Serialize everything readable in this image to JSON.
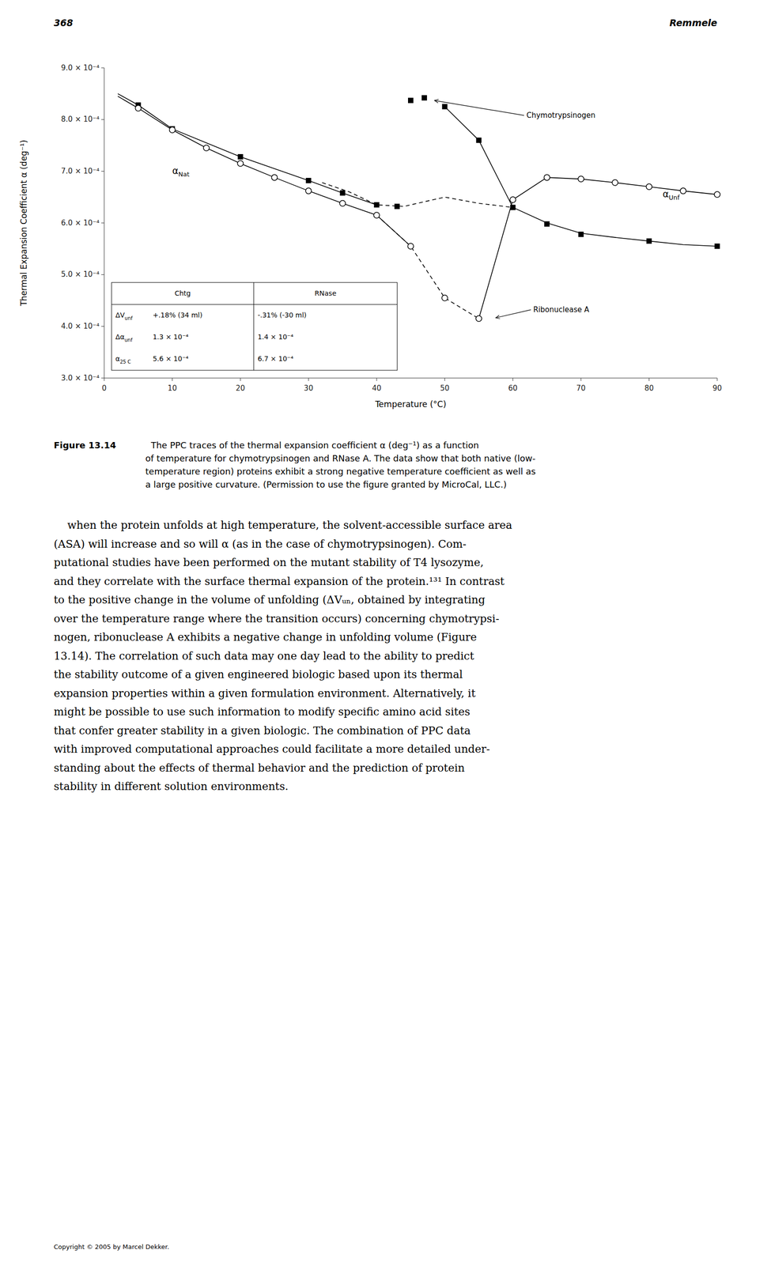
{
  "background": "#ffffff",
  "header": {
    "page_num": "368",
    "author": "Remmele"
  },
  "caption_label": "Figure 13.14",
  "caption": [
    "  The PPC traces of the thermal expansion coefficient α (deg⁻¹) as a function",
    "of temperature for chymotrypsinogen and RNase A. The data show that both native (low-",
    "temperature region) proteins exhibit a strong negative temperature coefficient as well as",
    "a large positive curvature. (Permission to use the figure granted by MicroCal, LLC.)"
  ],
  "body": [
    "    when the protein unfolds at high temperature, the solvent-accessible surface area",
    "(ASA) will increase and so will α (as in the case of chymotrypsinogen). Com-",
    "putational studies have been performed on the mutant stability of T4 lysozyme,",
    "and they correlate with the surface thermal expansion of the protein.¹³¹ In contrast",
    "to the positive change in the volume of unfolding (ΔVᵤₙ⁦, obtained by integrating",
    "over the temperature range where the transition occurs) concerning chymotrypsi-",
    "nogen, ribonuclease A exhibits a negative change in unfolding volume (Figure",
    "13.14). The correlation of such data may one day lead to the ability to predict",
    "the stability outcome of a given engineered biologic based upon its thermal",
    "expansion properties within a given formulation environment. Alternatively, it",
    "might be possible to use such information to modify specific amino acid sites",
    "that confer greater stability in a given biologic. The combination of PPC data",
    "with improved computational approaches could facilitate a more detailed under-",
    "standing about the effects of thermal behavior and the prediction of protein",
    "stability in different solution environments."
  ],
  "copyright": "Copyright © 2005 by Marcel Dekker.",
  "chart_data": {
    "type": "line",
    "xlabel": "Temperature (°C)",
    "ylabel": "Thermal Expansion Coefficient α (deg⁻¹)",
    "xlim": [
      0,
      90
    ],
    "ylim": [
      0.0003,
      0.0009
    ],
    "xticks": [
      0,
      10,
      20,
      30,
      40,
      50,
      60,
      70,
      80,
      90
    ],
    "yticks": [
      {
        "value": 0.0003,
        "label": "3.0 × 10⁻⁴"
      },
      {
        "value": 0.0004,
        "label": "4.0 × 10⁻⁴"
      },
      {
        "value": 0.0005,
        "label": "5.0 × 10⁻⁴"
      },
      {
        "value": 0.0006,
        "label": "6.0 × 10⁻⁴"
      },
      {
        "value": 0.0007,
        "label": "7.0 × 10⁻⁴"
      },
      {
        "value": 0.0008,
        "label": "8.0 × 10⁻⁴"
      },
      {
        "value": 0.0009,
        "label": "9.0 × 10⁻⁴"
      }
    ],
    "grid": false,
    "series": [
      {
        "type": "line",
        "line_style": "solid",
        "color": "#000000",
        "x": [
          2,
          5,
          10,
          15,
          20,
          25,
          30,
          35,
          40
        ],
        "values": [
          0.00085,
          0.000828,
          0.000782,
          0.000755,
          0.000728,
          0.000705,
          0.000682,
          0.000658,
          0.000635
        ]
      },
      {
        "type": "line",
        "line_style": "solid",
        "color": "#000000",
        "x": [
          50,
          55,
          60,
          65,
          70,
          75,
          80,
          85,
          90
        ],
        "values": [
          0.000825,
          0.00076,
          0.00063,
          0.0006,
          0.00058,
          0.000572,
          0.000565,
          0.000558,
          0.000555
        ]
      },
      {
        "type": "line",
        "line_style": "dashed",
        "color": "#000000",
        "x": [
          32,
          36,
          40,
          44,
          50,
          55,
          60
        ],
        "values": [
          0.000678,
          0.00066,
          0.000635,
          0.000632,
          0.00065,
          0.000638,
          0.00063
        ]
      },
      {
        "type": "scatter",
        "marker": "square",
        "color": "#000000",
        "x": [
          5,
          10,
          20,
          30,
          35,
          40,
          43,
          45,
          47,
          50,
          55,
          60,
          65,
          70,
          80,
          90
        ],
        "values": [
          0.000828,
          0.000782,
          0.000728,
          0.000682,
          0.000658,
          0.000635,
          0.000632,
          0.000837,
          0.000842,
          0.000825,
          0.00076,
          0.00063,
          0.000598,
          0.000578,
          0.000565,
          0.000555
        ]
      },
      {
        "type": "line",
        "line_style": "solid",
        "color": "#000000",
        "x": [
          2,
          5,
          10,
          15,
          20,
          25,
          30,
          35,
          40,
          45
        ],
        "values": [
          0.000845,
          0.000822,
          0.00078,
          0.000745,
          0.000715,
          0.000688,
          0.000662,
          0.000638,
          0.000615,
          0.000555
        ]
      },
      {
        "type": "line",
        "line_style": "solid",
        "color": "#000000",
        "x": [
          55,
          60,
          65,
          70,
          75,
          80,
          85,
          90
        ],
        "values": [
          0.000415,
          0.000645,
          0.000688,
          0.000685,
          0.000678,
          0.00067,
          0.000662,
          0.000655
        ]
      },
      {
        "type": "line",
        "line_style": "dashed",
        "color": "#000000",
        "x": [
          40,
          45,
          50,
          55
        ],
        "values": [
          0.000615,
          0.000555,
          0.000455,
          0.000415
        ]
      },
      {
        "type": "scatter",
        "marker": "hollow-circle",
        "color": "#000000",
        "x": [
          5,
          10,
          15,
          20,
          25,
          30,
          35,
          40,
          45,
          50,
          55,
          60,
          65,
          70,
          75,
          80,
          85,
          90
        ],
        "values": [
          0.000822,
          0.00078,
          0.000745,
          0.000715,
          0.000688,
          0.000662,
          0.000638,
          0.000615,
          0.000555,
          0.000455,
          0.000415,
          0.000645,
          0.000688,
          0.000685,
          0.000678,
          0.00067,
          0.000662,
          0.000655
        ]
      }
    ],
    "annotations": [
      {
        "text": "α",
        "sub": "Nat",
        "x": 10,
        "y": 0.0007
      },
      {
        "text": "α",
        "sub": "Unf",
        "x": 82,
        "y": 0.000655
      },
      {
        "text": "Chymotrypsinogen",
        "x": 62,
        "y": 0.000808,
        "arrow_x": 48,
        "arrow_y": 0.000838
      },
      {
        "text": "Ribonuclease A",
        "x": 63,
        "y": 0.000432,
        "arrow_x": 57,
        "arrow_y": 0.000415
      }
    ],
    "table": {
      "columns": [
        "Chtg",
        "RNase"
      ],
      "rows": [
        {
          "label": "ΔV",
          "sub": "unf",
          "cells": [
            "+.18% (34 ml)",
            "-.31% (-30 ml)"
          ]
        },
        {
          "label": "Δα",
          "sub": "unf",
          "cells": [
            "1.3 × 10⁻⁴",
            "1.4 × 10⁻⁴"
          ]
        },
        {
          "label": "α",
          "sub": "25 C",
          "cells": [
            "5.6 × 10⁻⁴",
            "6.7 × 10⁻⁴"
          ]
        }
      ]
    }
  }
}
